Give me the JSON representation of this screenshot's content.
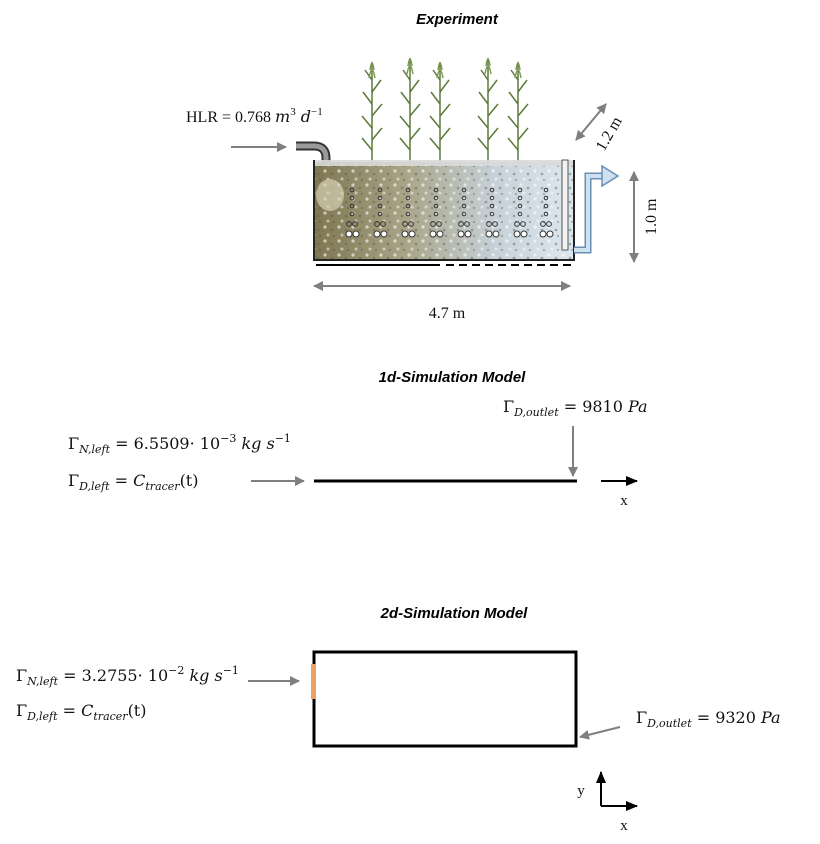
{
  "experiment": {
    "title": "Experiment",
    "hlr": {
      "prefix": "HLR = 0.768 ",
      "m": "m",
      "exp3": "3",
      "d": " d",
      "expm1": "−1"
    },
    "width_label": "1.2 m",
    "height_label": "1.0 m",
    "length_label": "4.7 m"
  },
  "model1d": {
    "title": "1d-Simulation Model",
    "outlet": {
      "gamma": "Γ",
      "sub": "D,outlet",
      "rest": " = 9810 ",
      "unit": "Pa"
    },
    "neumann": {
      "gamma": "Γ",
      "sub": "N,left",
      "rest": " = 6.5509· 10",
      "exp": "−3",
      "unit": " kg s",
      "unitexp": "−1"
    },
    "dirichlet": {
      "gamma": "Γ",
      "sub": "D,left",
      "rest": " = ",
      "c": "C",
      "csub": "tracer",
      "arg": "(t)"
    },
    "x_label": "x"
  },
  "model2d": {
    "title": "2d-Simulation Model",
    "neumann": {
      "gamma": "Γ",
      "sub": "N,left",
      "rest": " = 3.2755· 10",
      "exp": "−2",
      "unit": " kg s",
      "unitexp": "−1"
    },
    "dirichlet": {
      "gamma": "Γ",
      "sub": "D,left",
      "rest": " = ",
      "c": "C",
      "csub": "tracer",
      "arg": "(t)"
    },
    "outlet": {
      "gamma": "Γ",
      "sub": "D,outlet",
      "rest": " = 9320 ",
      "unit": "Pa"
    },
    "x_label": "x",
    "y_label": "y"
  },
  "colors": {
    "soil_left": "#8a7f5a",
    "soil_right": "#d6e3ee",
    "water": "#bcd3ea",
    "inlet_marker": "#f0a060",
    "arrow_gray": "#7f7f7f",
    "reed": "#5a7a3a"
  }
}
